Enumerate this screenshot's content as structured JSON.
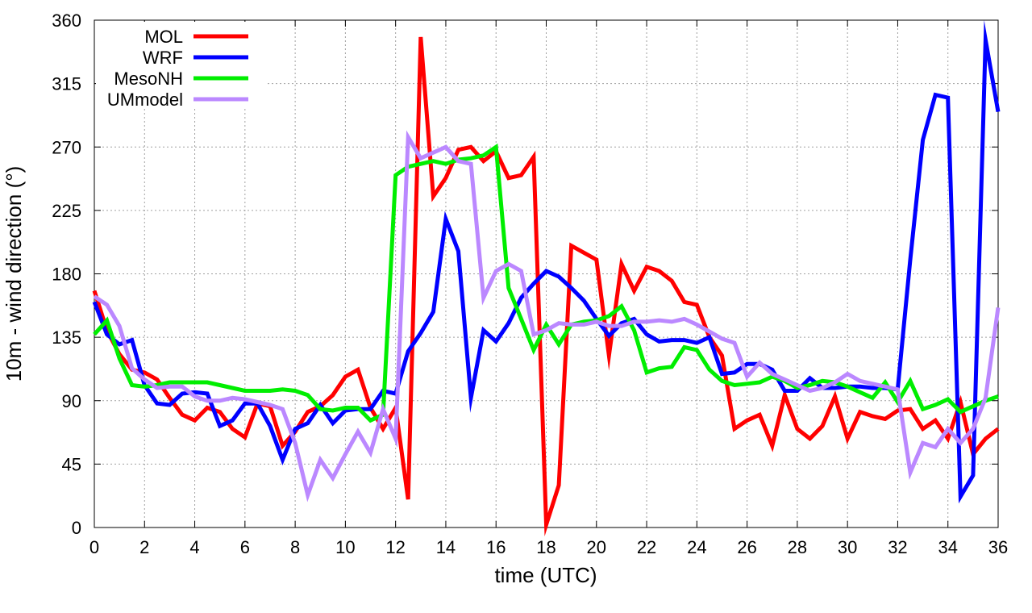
{
  "chart_data": {
    "type": "line",
    "xlabel": "time (UTC)",
    "ylabel": "10m - wind direction (°)",
    "xlim": [
      0,
      36
    ],
    "ylim": [
      0,
      360
    ],
    "xticks": [
      0,
      2,
      4,
      6,
      8,
      10,
      12,
      14,
      16,
      18,
      20,
      22,
      24,
      26,
      28,
      30,
      32,
      34,
      36
    ],
    "yticks": [
      0,
      45,
      90,
      135,
      180,
      225,
      270,
      315,
      360
    ],
    "grid": true,
    "legend_position": "top-left",
    "series": [
      {
        "name": "MOL",
        "color": "#ff0000",
        "points": [
          [
            0,
            168
          ],
          [
            0.5,
            140
          ],
          [
            1,
            123
          ],
          [
            1.5,
            112
          ],
          [
            2,
            110
          ],
          [
            2.5,
            105
          ],
          [
            3,
            92
          ],
          [
            3.5,
            80
          ],
          [
            4,
            76
          ],
          [
            4.5,
            85
          ],
          [
            5,
            82
          ],
          [
            5.5,
            70
          ],
          [
            6,
            64
          ],
          [
            6.5,
            88
          ],
          [
            7,
            86
          ],
          [
            7.5,
            58
          ],
          [
            8,
            68
          ],
          [
            8.5,
            82
          ],
          [
            9,
            86
          ],
          [
            9.5,
            94
          ],
          [
            10,
            107
          ],
          [
            10.5,
            112
          ],
          [
            11,
            85
          ],
          [
            11.5,
            70
          ],
          [
            12,
            85
          ],
          [
            12.5,
            20
          ],
          [
            13,
            348
          ],
          [
            13.5,
            235
          ],
          [
            14,
            248
          ],
          [
            14.5,
            268
          ],
          [
            15,
            270
          ],
          [
            15.5,
            260
          ],
          [
            16,
            267
          ],
          [
            16.5,
            248
          ],
          [
            17,
            250
          ],
          [
            17.5,
            263
          ],
          [
            18,
            2
          ],
          [
            18.5,
            30
          ],
          [
            19,
            200
          ],
          [
            19.5,
            195
          ],
          [
            20,
            190
          ],
          [
            20.5,
            122
          ],
          [
            21,
            187
          ],
          [
            21.5,
            168
          ],
          [
            22,
            185
          ],
          [
            22.5,
            182
          ],
          [
            23,
            175
          ],
          [
            23.5,
            160
          ],
          [
            24,
            158
          ],
          [
            24.5,
            135
          ],
          [
            25,
            122
          ],
          [
            25.5,
            70
          ],
          [
            26,
            76
          ],
          [
            26.5,
            80
          ],
          [
            27,
            58
          ],
          [
            27.5,
            94
          ],
          [
            28,
            70
          ],
          [
            28.5,
            63
          ],
          [
            29,
            72
          ],
          [
            29.5,
            93
          ],
          [
            30,
            63
          ],
          [
            30.5,
            82
          ],
          [
            31,
            79
          ],
          [
            31.5,
            77
          ],
          [
            32,
            83
          ],
          [
            32.5,
            84
          ],
          [
            33,
            70
          ],
          [
            33.5,
            76
          ],
          [
            34,
            63
          ],
          [
            34.5,
            89
          ],
          [
            35,
            52
          ],
          [
            35.5,
            63
          ],
          [
            36,
            70
          ]
        ]
      },
      {
        "name": "WRF",
        "color": "#0000ff",
        "points": [
          [
            0,
            160
          ],
          [
            0.5,
            137
          ],
          [
            1,
            130
          ],
          [
            1.5,
            133
          ],
          [
            2,
            101
          ],
          [
            2.5,
            88
          ],
          [
            3,
            87
          ],
          [
            3.5,
            95
          ],
          [
            4,
            96
          ],
          [
            4.5,
            95
          ],
          [
            5,
            72
          ],
          [
            5.5,
            76
          ],
          [
            6,
            88
          ],
          [
            6.5,
            88
          ],
          [
            7,
            72
          ],
          [
            7.5,
            48
          ],
          [
            8,
            70
          ],
          [
            8.5,
            74
          ],
          [
            9,
            87
          ],
          [
            9.5,
            74
          ],
          [
            10,
            83
          ],
          [
            10.5,
            84
          ],
          [
            11,
            84
          ],
          [
            11.5,
            97
          ],
          [
            12,
            95
          ],
          [
            12.5,
            125
          ],
          [
            13,
            138
          ],
          [
            13.5,
            153
          ],
          [
            14,
            219
          ],
          [
            14.5,
            196
          ],
          [
            15,
            92
          ],
          [
            15.5,
            140
          ],
          [
            16,
            132
          ],
          [
            16.5,
            145
          ],
          [
            17,
            163
          ],
          [
            17.5,
            173
          ],
          [
            18,
            182
          ],
          [
            18.5,
            178
          ],
          [
            19,
            170
          ],
          [
            19.5,
            161
          ],
          [
            20,
            148
          ],
          [
            20.5,
            136
          ],
          [
            21,
            145
          ],
          [
            21.5,
            148
          ],
          [
            22,
            137
          ],
          [
            22.5,
            132
          ],
          [
            23,
            133
          ],
          [
            23.5,
            133
          ],
          [
            24,
            131
          ],
          [
            24.5,
            135
          ],
          [
            25,
            109
          ],
          [
            25.5,
            110
          ],
          [
            26,
            116
          ],
          [
            26.5,
            116
          ],
          [
            27,
            112
          ],
          [
            27.5,
            97
          ],
          [
            28,
            97
          ],
          [
            28.5,
            106
          ],
          [
            29,
            99
          ],
          [
            29.5,
            99
          ],
          [
            30,
            100
          ],
          [
            30.5,
            100
          ],
          [
            31,
            99
          ],
          [
            31.5,
            99
          ],
          [
            32,
            98
          ],
          [
            32.5,
            190
          ],
          [
            33,
            275
          ],
          [
            33.5,
            307
          ],
          [
            34,
            305
          ],
          [
            34.5,
            22
          ],
          [
            35,
            37
          ],
          [
            35.5,
            346
          ],
          [
            36,
            295
          ]
        ]
      },
      {
        "name": "MesoNH",
        "color": "#00ee00",
        "points": [
          [
            0,
            137
          ],
          [
            0.5,
            147
          ],
          [
            1,
            120
          ],
          [
            1.5,
            101
          ],
          [
            2,
            100
          ],
          [
            2.5,
            101
          ],
          [
            3,
            103
          ],
          [
            3.5,
            103
          ],
          [
            4,
            103
          ],
          [
            4.5,
            103
          ],
          [
            5,
            101
          ],
          [
            5.5,
            99
          ],
          [
            6,
            97
          ],
          [
            6.5,
            97
          ],
          [
            7,
            97
          ],
          [
            7.5,
            98
          ],
          [
            8,
            97
          ],
          [
            8.5,
            94
          ],
          [
            9,
            84
          ],
          [
            9.5,
            83
          ],
          [
            10,
            85
          ],
          [
            10.5,
            85
          ],
          [
            11,
            76
          ],
          [
            11.5,
            80
          ],
          [
            12,
            250
          ],
          [
            12.5,
            256
          ],
          [
            13,
            258
          ],
          [
            13.5,
            260
          ],
          [
            14,
            258
          ],
          [
            14.5,
            261
          ],
          [
            15,
            262
          ],
          [
            15.5,
            264
          ],
          [
            16,
            270
          ],
          [
            16.5,
            170
          ],
          [
            17,
            148
          ],
          [
            17.5,
            126
          ],
          [
            18,
            144
          ],
          [
            18.5,
            130
          ],
          [
            19,
            144
          ],
          [
            19.5,
            146
          ],
          [
            20,
            147
          ],
          [
            20.5,
            150
          ],
          [
            21,
            157
          ],
          [
            21.5,
            140
          ],
          [
            22,
            110
          ],
          [
            22.5,
            113
          ],
          [
            23,
            114
          ],
          [
            23.5,
            128
          ],
          [
            24,
            126
          ],
          [
            24.5,
            112
          ],
          [
            25,
            104
          ],
          [
            25.5,
            101
          ],
          [
            26,
            102
          ],
          [
            26.5,
            103
          ],
          [
            27,
            107
          ],
          [
            27.5,
            104
          ],
          [
            28,
            99
          ],
          [
            28.5,
            101
          ],
          [
            29,
            104
          ],
          [
            29.5,
            103
          ],
          [
            30,
            100
          ],
          [
            30.5,
            96
          ],
          [
            31,
            92
          ],
          [
            31.5,
            103
          ],
          [
            32,
            89
          ],
          [
            32.5,
            104
          ],
          [
            33,
            84
          ],
          [
            33.5,
            87
          ],
          [
            34,
            91
          ],
          [
            34.5,
            82
          ],
          [
            35,
            86
          ],
          [
            35.5,
            90
          ],
          [
            36,
            93
          ]
        ]
      },
      {
        "name": "UMmodel",
        "color": "#bb88ff",
        "points": [
          [
            0,
            164
          ],
          [
            0.5,
            158
          ],
          [
            1,
            143
          ],
          [
            1.5,
            113
          ],
          [
            2,
            105
          ],
          [
            2.5,
            99
          ],
          [
            3,
            100
          ],
          [
            3.5,
            100
          ],
          [
            4,
            93
          ],
          [
            4.5,
            90
          ],
          [
            5,
            90
          ],
          [
            5.5,
            92
          ],
          [
            6,
            91
          ],
          [
            6.5,
            89
          ],
          [
            7,
            87
          ],
          [
            7.5,
            84
          ],
          [
            8,
            60
          ],
          [
            8.5,
            23
          ],
          [
            9,
            48
          ],
          [
            9.5,
            35
          ],
          [
            10,
            52
          ],
          [
            10.5,
            68
          ],
          [
            11,
            53
          ],
          [
            11.5,
            84
          ],
          [
            12,
            63
          ],
          [
            12.5,
            277
          ],
          [
            13,
            262
          ],
          [
            13.5,
            266
          ],
          [
            14,
            270
          ],
          [
            14.5,
            260
          ],
          [
            15,
            258
          ],
          [
            15.5,
            163
          ],
          [
            16,
            182
          ],
          [
            16.5,
            187
          ],
          [
            17,
            182
          ],
          [
            17.5,
            137
          ],
          [
            18,
            140
          ],
          [
            18.5,
            145
          ],
          [
            19,
            144
          ],
          [
            19.5,
            144
          ],
          [
            20,
            146
          ],
          [
            20.5,
            143
          ],
          [
            21,
            143
          ],
          [
            21.5,
            146
          ],
          [
            22,
            146
          ],
          [
            22.5,
            147
          ],
          [
            23,
            146
          ],
          [
            23.5,
            148
          ],
          [
            24,
            144
          ],
          [
            24.5,
            139
          ],
          [
            25,
            134
          ],
          [
            25.5,
            131
          ],
          [
            26,
            107
          ],
          [
            26.5,
            117
          ],
          [
            27,
            109
          ],
          [
            27.5,
            105
          ],
          [
            28,
            101
          ],
          [
            28.5,
            97
          ],
          [
            29,
            99
          ],
          [
            29.5,
            103
          ],
          [
            30,
            109
          ],
          [
            30.5,
            104
          ],
          [
            31,
            102
          ],
          [
            31.5,
            100
          ],
          [
            32,
            98
          ],
          [
            32.5,
            39
          ],
          [
            33,
            60
          ],
          [
            33.5,
            57
          ],
          [
            34,
            70
          ],
          [
            34.5,
            60
          ],
          [
            35,
            70
          ],
          [
            35.5,
            92
          ],
          [
            36,
            156
          ]
        ]
      }
    ]
  }
}
